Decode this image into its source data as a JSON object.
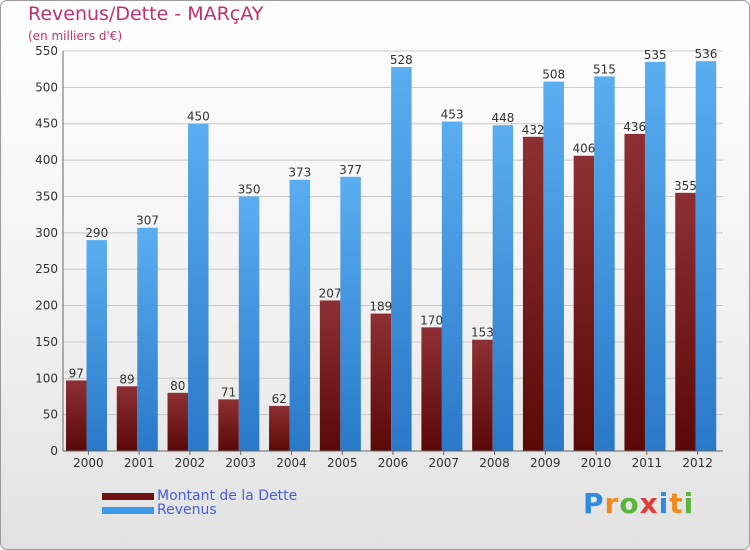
{
  "title": "Revenus/Dette - MARçAY",
  "subtitle": "(en milliers d'€)",
  "chart_data": {
    "type": "bar",
    "title": "Revenus/Dette - MARçAY",
    "ylabel": "(en milliers d'€)",
    "xlabel": "",
    "ylim": [
      0,
      550
    ],
    "yticks": [
      0,
      50,
      100,
      150,
      200,
      250,
      300,
      350,
      400,
      450,
      500,
      550
    ],
    "grid": true,
    "categories": [
      "2000",
      "2001",
      "2002",
      "2003",
      "2004",
      "2005",
      "2006",
      "2007",
      "2008",
      "2009",
      "2010",
      "2011",
      "2012"
    ],
    "series": [
      {
        "name": "Montant de la Dette",
        "color": "#7b1f24",
        "values": [
          97,
          89,
          80,
          71,
          62,
          207,
          189,
          170,
          153,
          432,
          406,
          436,
          355
        ]
      },
      {
        "name": "Revenus",
        "color": "#3d9ae8",
        "values": [
          290,
          307,
          450,
          350,
          373,
          377,
          528,
          453,
          448,
          508,
          515,
          535,
          536
        ]
      }
    ],
    "legend_position": "bottom-left"
  },
  "legend": {
    "items": [
      {
        "label": "Montant de la Dette",
        "color": "#6e0f10"
      },
      {
        "label": "Revenus",
        "color": "#3d9ae8"
      }
    ]
  },
  "logo": {
    "letters": [
      "P",
      "r",
      "o",
      "x",
      "i",
      "t",
      "i"
    ],
    "colors": [
      "#2f8be0",
      "#f08a1c",
      "#5bb53b",
      "#e23b3b",
      "#2f8be0",
      "#f08a1c",
      "#5bb53b"
    ]
  }
}
